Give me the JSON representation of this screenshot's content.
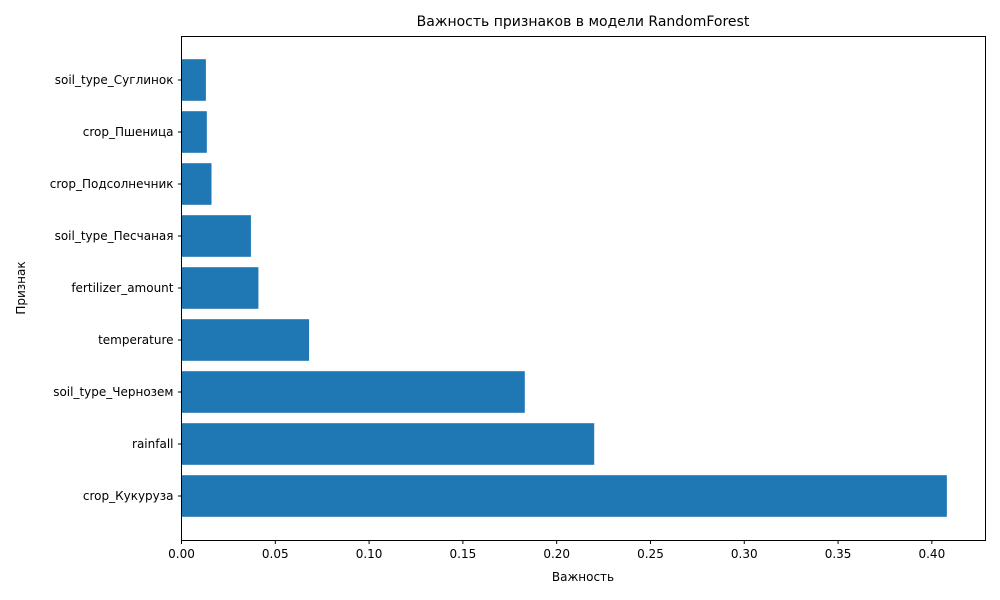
{
  "chart_data": {
    "type": "bar",
    "orientation": "horizontal",
    "title": "Важность признаков в модели RandomForest",
    "xlabel": "Важность",
    "ylabel": "Признак",
    "xlim": [
      0,
      0.4286
    ],
    "xticks": [
      0.0,
      0.05,
      0.1,
      0.15,
      0.2,
      0.25,
      0.3,
      0.35,
      0.4
    ],
    "xtick_labels": [
      "0.00",
      "0.05",
      "0.10",
      "0.15",
      "0.20",
      "0.25",
      "0.30",
      "0.35",
      "0.40"
    ],
    "grid": false,
    "bar_color": "#1f77b4",
    "categories": [
      "crop_Кукуруза",
      "rainfall",
      "soil_type_Чернозем",
      "temperature",
      "fertilizer_amount",
      "soil_type_Песчаная",
      "crop_Подсолнечник",
      "crop_Пшеница",
      "soil_type_Суглинок"
    ],
    "values": [
      0.408,
      0.22,
      0.183,
      0.068,
      0.041,
      0.037,
      0.016,
      0.0135,
      0.013
    ]
  }
}
